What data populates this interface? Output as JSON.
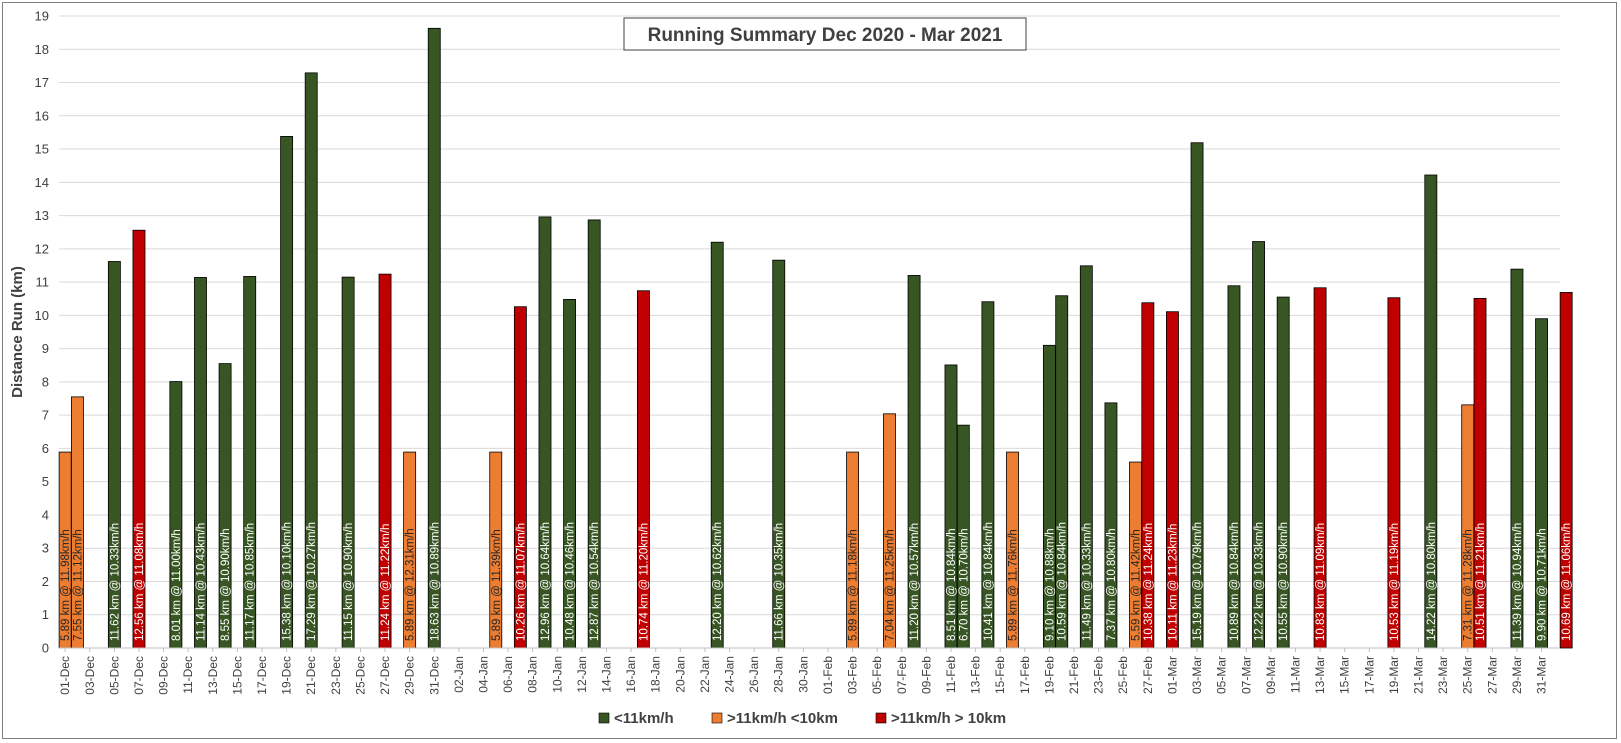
{
  "chart_data": {
    "type": "bar",
    "title": "Running Summary Dec 2020 - Mar 2021",
    "ylabel": "Distance Run (km)",
    "xlabel": "",
    "ylim": [
      0,
      19
    ],
    "yticks": [
      0,
      1,
      2,
      3,
      4,
      5,
      6,
      7,
      8,
      9,
      10,
      11,
      12,
      13,
      14,
      15,
      16,
      17,
      18,
      19
    ],
    "grid": true,
    "legend_position": "bottom",
    "start_date": "2020-12-01",
    "end_date": "2021-03-31",
    "x_tick_labels": [
      "01-Dec",
      "03-Dec",
      "05-Dec",
      "07-Dec",
      "09-Dec",
      "11-Dec",
      "13-Dec",
      "15-Dec",
      "17-Dec",
      "19-Dec",
      "21-Dec",
      "23-Dec",
      "25-Dec",
      "27-Dec",
      "29-Dec",
      "31-Dec",
      "02-Jan",
      "04-Jan",
      "06-Jan",
      "08-Jan",
      "10-Jan",
      "12-Jan",
      "14-Jan",
      "16-Jan",
      "18-Jan",
      "20-Jan",
      "22-Jan",
      "24-Jan",
      "26-Jan",
      "28-Jan",
      "30-Jan",
      "01-Feb",
      "03-Feb",
      "05-Feb",
      "07-Feb",
      "09-Feb",
      "11-Feb",
      "13-Feb",
      "15-Feb",
      "17-Feb",
      "19-Feb",
      "21-Feb",
      "23-Feb",
      "25-Feb",
      "27-Feb",
      "01-Mar",
      "03-Mar",
      "05-Mar",
      "07-Mar",
      "09-Mar",
      "11-Mar",
      "13-Mar",
      "15-Mar",
      "17-Mar",
      "19-Mar",
      "21-Mar",
      "23-Mar",
      "25-Mar",
      "27-Mar",
      "29-Mar",
      "31-Mar"
    ],
    "series": [
      {
        "name": "<11km/h",
        "color": "#375623"
      },
      {
        "name": ">11km/h <10km",
        "color": "#ed7d31"
      },
      {
        "name": ">11km/h  > 10km",
        "color": "#c00000"
      }
    ],
    "bars": [
      {
        "date": "2020-12-01",
        "value": 5.89,
        "series": 1,
        "label": "5.89 km @ 11.98km/h"
      },
      {
        "date": "2020-12-02",
        "value": 7.55,
        "series": 1,
        "label": "7.55 km @ 11.12km/h"
      },
      {
        "date": "2020-12-05",
        "value": 11.62,
        "series": 0,
        "label": "11.62 km @ 10.33km/h"
      },
      {
        "date": "2020-12-07",
        "value": 12.56,
        "series": 2,
        "label": "12.56 km @ 11.08km/h"
      },
      {
        "date": "2020-12-10",
        "value": 8.01,
        "series": 0,
        "label": "8.01 km @ 11.00km/h"
      },
      {
        "date": "2020-12-12",
        "value": 11.14,
        "series": 0,
        "label": "11.14 km @ 10.43km/h"
      },
      {
        "date": "2020-12-14",
        "value": 8.55,
        "series": 0,
        "label": "8.55 km @ 10.90km/h"
      },
      {
        "date": "2020-12-16",
        "value": 11.17,
        "series": 0,
        "label": "11.17 km @ 10.85km/h"
      },
      {
        "date": "2020-12-19",
        "value": 15.38,
        "series": 0,
        "label": "15.38 km @ 10.10km/h"
      },
      {
        "date": "2020-12-21",
        "value": 17.29,
        "series": 0,
        "label": "17.29 km @ 10.27km/h"
      },
      {
        "date": "2020-12-24",
        "value": 11.15,
        "series": 0,
        "label": "11.15 km @ 10.90km/h"
      },
      {
        "date": "2020-12-27",
        "value": 11.24,
        "series": 2,
        "label": "11.24 km @ 11.22km/h"
      },
      {
        "date": "2020-12-29",
        "value": 5.89,
        "series": 1,
        "label": "5.89 km @ 12.31km/h"
      },
      {
        "date": "2020-12-31",
        "value": 18.63,
        "series": 0,
        "label": "18.63 km @ 10.89km/h"
      },
      {
        "date": "2021-01-05",
        "value": 5.89,
        "series": 1,
        "label": "5.89 km @ 11.39km/h"
      },
      {
        "date": "2021-01-07",
        "value": 10.26,
        "series": 2,
        "label": "10.26 km @ 11.07km/h"
      },
      {
        "date": "2021-01-09",
        "value": 12.96,
        "series": 0,
        "label": "12.96 km @ 10.64km/h"
      },
      {
        "date": "2021-01-11",
        "value": 10.48,
        "series": 0,
        "label": "10.48 km @ 10.46km/h"
      },
      {
        "date": "2021-01-13",
        "value": 12.87,
        "series": 0,
        "label": "12.87 km @ 10.54km/h"
      },
      {
        "date": "2021-01-17",
        "value": 10.74,
        "series": 2,
        "label": "10.74 km @ 11.20km/h"
      },
      {
        "date": "2021-01-23",
        "value": 12.2,
        "series": 0,
        "label": "12.20 km @ 10.62km/h"
      },
      {
        "date": "2021-01-28",
        "value": 11.66,
        "series": 0,
        "label": "11.66 km @ 10.35km/h"
      },
      {
        "date": "2021-02-03",
        "value": 5.89,
        "series": 1,
        "label": "5.89 km @ 11.18km/h"
      },
      {
        "date": "2021-02-06",
        "value": 7.04,
        "series": 1,
        "label": "7.04 km @ 11.25km/h"
      },
      {
        "date": "2021-02-08",
        "value": 11.2,
        "series": 0,
        "label": "11.20 km @ 10.57km/h"
      },
      {
        "date": "2021-02-11",
        "value": 8.51,
        "series": 0,
        "label": "8.51 km @ 10.84km/h"
      },
      {
        "date": "2021-02-12",
        "value": 6.7,
        "series": 0,
        "label": "6.70 km @ 10.70km/h"
      },
      {
        "date": "2021-02-14",
        "value": 10.41,
        "series": 0,
        "label": "10.41 km @ 10.84km/h"
      },
      {
        "date": "2021-02-16",
        "value": 5.89,
        "series": 1,
        "label": "5.89 km @ 11.76km/h"
      },
      {
        "date": "2021-02-19",
        "value": 9.1,
        "series": 0,
        "label": "9.10 km @ 10.88km/h"
      },
      {
        "date": "2021-02-20",
        "value": 10.59,
        "series": 0,
        "label": "10.59 km @ 10.84km/h"
      },
      {
        "date": "2021-02-22",
        "value": 11.49,
        "series": 0,
        "label": "11.49 km @ 10.33km/h"
      },
      {
        "date": "2021-02-24",
        "value": 7.37,
        "series": 0,
        "label": "7.37 km @ 10.80km/h"
      },
      {
        "date": "2021-02-26",
        "value": 5.59,
        "series": 1,
        "label": "5.59 km @ 11.42km/h"
      },
      {
        "date": "2021-02-27",
        "value": 10.38,
        "series": 2,
        "label": "10.38 km @ 11.24km/h"
      },
      {
        "date": "2021-03-01",
        "value": 10.11,
        "series": 2,
        "label": "10.11 km @ 11.23km/h"
      },
      {
        "date": "2021-03-03",
        "value": 15.19,
        "series": 0,
        "label": "15.19 km @ 10.79km/h"
      },
      {
        "date": "2021-03-06",
        "value": 10.89,
        "series": 0,
        "label": "10.89 km @ 10.84km/h"
      },
      {
        "date": "2021-03-08",
        "value": 12.22,
        "series": 0,
        "label": "12.22 km @ 10.33km/h"
      },
      {
        "date": "2021-03-10",
        "value": 10.55,
        "series": 0,
        "label": "10.55 km @ 10.90km/h"
      },
      {
        "date": "2021-03-13",
        "value": 10.83,
        "series": 2,
        "label": "10.83 km @ 11.09km/h"
      },
      {
        "date": "2021-03-19",
        "value": 10.53,
        "series": 2,
        "label": "10.53 km @ 11.19km/h"
      },
      {
        "date": "2021-03-22",
        "value": 14.22,
        "series": 0,
        "label": "14.22 km @ 10.80km/h"
      },
      {
        "date": "2021-03-25",
        "value": 7.31,
        "series": 1,
        "label": "7.31 km @ 11.28km/h"
      },
      {
        "date": "2021-03-26",
        "value": 10.51,
        "series": 2,
        "label": "10.51 km @ 11.21km/h"
      },
      {
        "date": "2021-03-29",
        "value": 11.39,
        "series": 0,
        "label": "11.39 km @ 10.94km/h"
      },
      {
        "date": "2021-03-31",
        "value": 9.9,
        "series": 0,
        "label": "9.90 km @ 10.71km/h"
      },
      {
        "date": "2021-04-02",
        "value": 10.69,
        "series": 2,
        "label": "10.69 km @ 11.06km/h"
      }
    ]
  }
}
